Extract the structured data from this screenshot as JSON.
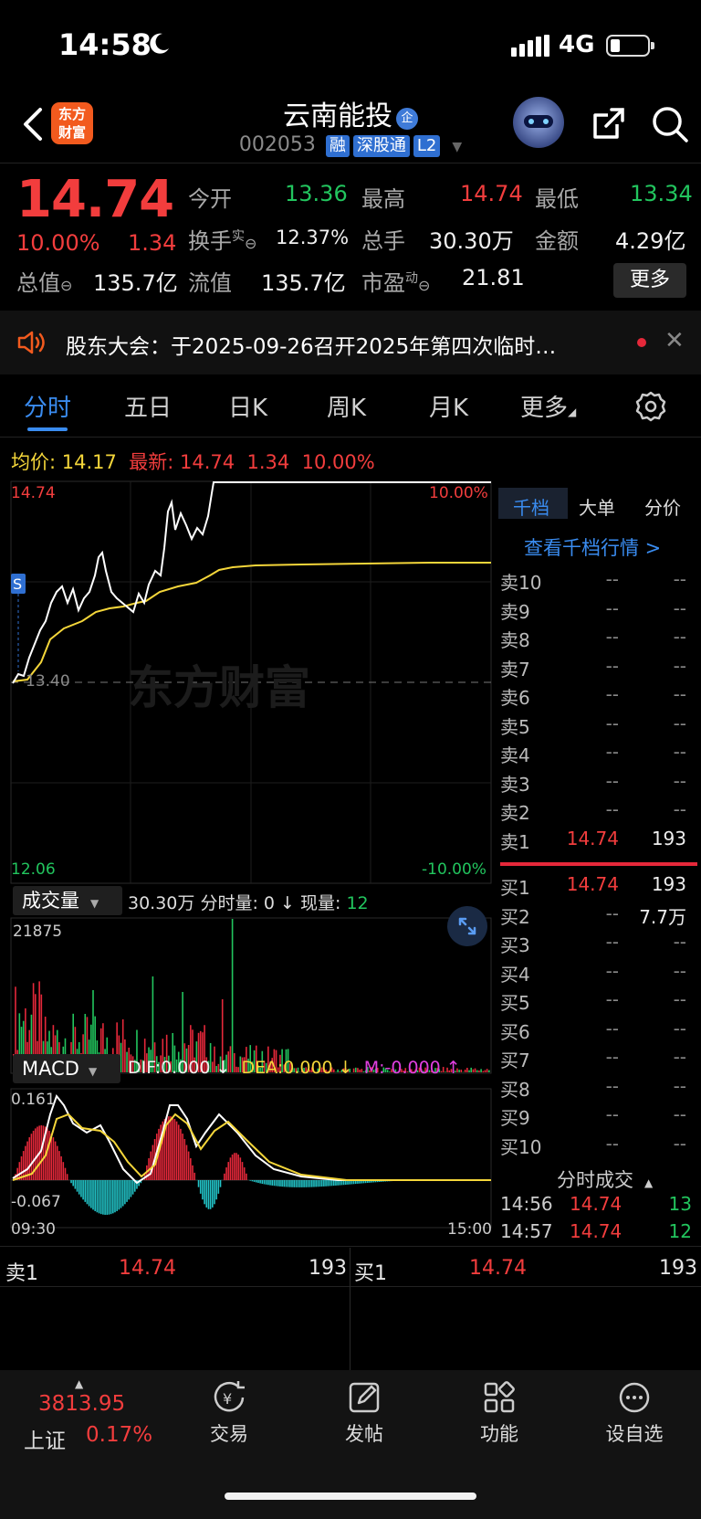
{
  "status_bar": {
    "time": "14:58",
    "network": "4G"
  },
  "header": {
    "logo_text_1": "东方",
    "logo_text_2": "财富",
    "stock_name": "云南能投",
    "name_badge": "企",
    "stock_code": "002053",
    "tags": [
      "融",
      "深股通",
      "L2"
    ]
  },
  "quote": {
    "price": "14.74",
    "change_pct": "10.00%",
    "change": "1.34",
    "open_label": "今开",
    "open": "13.36",
    "high_label": "最高",
    "high": "14.74",
    "low_label": "最低",
    "low": "13.34",
    "turnover_label": "换手",
    "turnover_sup": "实",
    "turnover": "12.37%",
    "volume_label": "总手",
    "volume": "30.30万",
    "amount_label": "金额",
    "amount": "4.29亿",
    "mktcap_label": "总值",
    "mktcap": "135.7亿",
    "float_label": "流值",
    "float_cap": "135.7亿",
    "pe_label": "市盈",
    "pe_sup": "动",
    "pe": "21.81",
    "more_label": "更多"
  },
  "notice": {
    "text": "股东大会：于2025-09-26召开2025年第四次临时…"
  },
  "tabs": [
    "分时",
    "五日",
    "日K",
    "周K",
    "月K",
    "更多"
  ],
  "chart": {
    "avg_label": "均价:",
    "avg": "14.17",
    "last_label": "最新:",
    "last": "14.74",
    "last_chg": "1.34",
    "last_pct": "10.00%",
    "y_top": "14.74",
    "y_top_pct": "10.00%",
    "y_mid": "13.40",
    "y_bottom": "12.06",
    "y_bottom_pct": "-10.00%",
    "watermark": "东方财富",
    "s_marker": "S"
  },
  "volume": {
    "selector": "成交量",
    "total": "30.30万",
    "minute_label": "分时量:",
    "minute": "0 ↓",
    "now_label": "现量:",
    "now": "12",
    "max": "21875"
  },
  "macd": {
    "selector": "MACD",
    "dif": "DIF:0.000 ↓",
    "dea": "DEA:0.000 ↓",
    "m": "M:-0.000 ↑",
    "y_top": "0.161",
    "y_bottom": "-0.067",
    "x_start": "09:30",
    "x_end": "15:00"
  },
  "orderbook": {
    "tabs": [
      "千档",
      "大单",
      "分价"
    ],
    "link": "查看千档行情 >",
    "asks": [
      {
        "label": "卖10",
        "price": "--",
        "vol": "--"
      },
      {
        "label": "卖9",
        "price": "--",
        "vol": "--"
      },
      {
        "label": "卖8",
        "price": "--",
        "vol": "--"
      },
      {
        "label": "卖7",
        "price": "--",
        "vol": "--"
      },
      {
        "label": "卖6",
        "price": "--",
        "vol": "--"
      },
      {
        "label": "卖5",
        "price": "--",
        "vol": "--"
      },
      {
        "label": "卖4",
        "price": "--",
        "vol": "--"
      },
      {
        "label": "卖3",
        "price": "--",
        "vol": "--"
      },
      {
        "label": "卖2",
        "price": "--",
        "vol": "--"
      },
      {
        "label": "卖1",
        "price": "14.74",
        "vol": "193"
      }
    ],
    "bids": [
      {
        "label": "买1",
        "price": "14.74",
        "vol": "193"
      },
      {
        "label": "买2",
        "price": "--",
        "vol": "7.7万"
      },
      {
        "label": "买3",
        "price": "--",
        "vol": "--"
      },
      {
        "label": "买4",
        "price": "--",
        "vol": "--"
      },
      {
        "label": "买5",
        "price": "--",
        "vol": "--"
      },
      {
        "label": "买6",
        "price": "--",
        "vol": "--"
      },
      {
        "label": "买7",
        "price": "--",
        "vol": "--"
      },
      {
        "label": "买8",
        "price": "--",
        "vol": "--"
      },
      {
        "label": "买9",
        "price": "--",
        "vol": "--"
      },
      {
        "label": "买10",
        "price": "--",
        "vol": "--"
      }
    ],
    "trades_title": "分时成交",
    "trades": [
      {
        "time": "14:56",
        "price": "14.74",
        "vol": "13"
      },
      {
        "time": "14:57",
        "price": "14.74",
        "vol": "12"
      }
    ]
  },
  "level1": {
    "ask_label": "卖1",
    "ask_price": "14.74",
    "ask_vol": "193",
    "bid_label": "买1",
    "bid_price": "14.74",
    "bid_vol": "193"
  },
  "bottom_nav": {
    "index_value": "3813.95",
    "index_name": "上证",
    "index_pct": "0.17%",
    "items": [
      "交易",
      "发帖",
      "功能",
      "设自选"
    ]
  },
  "chart_data": {
    "type": "line",
    "price_range": [
      12.06,
      14.74
    ],
    "prev_close": 13.4,
    "price_series_shape": "intraday",
    "volume_max": 21875,
    "macd_range": [
      -0.067,
      0.161
    ]
  }
}
